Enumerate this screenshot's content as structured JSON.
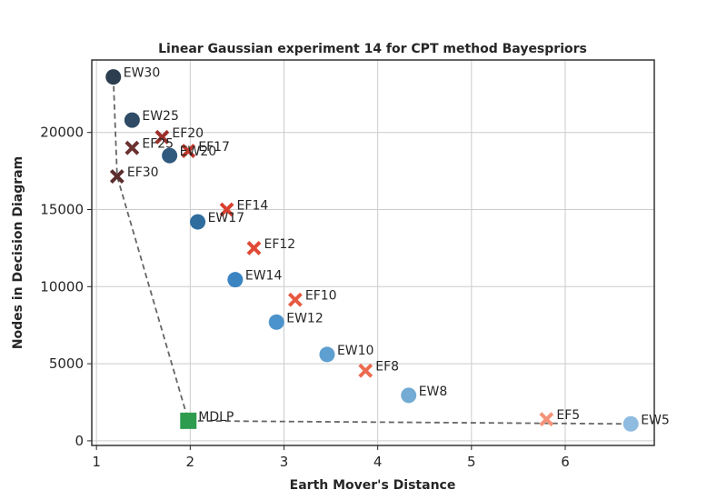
{
  "chart_data": {
    "type": "scatter",
    "title": "Linear Gaussian experiment 14 for CPT method Bayespriors",
    "xlabel": "Earth Mover's Distance",
    "ylabel": "Nodes in Decision Diagram",
    "xlim": [
      0.95,
      6.95
    ],
    "ylim": [
      -300,
      24700
    ],
    "xticks": [
      1,
      2,
      3,
      4,
      5,
      6
    ],
    "yticks": [
      0,
      5000,
      10000,
      15000,
      20000
    ],
    "grid": true,
    "series": [
      {
        "marker": "circle",
        "points": [
          {
            "label": "EW30",
            "x": 1.18,
            "y": 23600,
            "color": "#2c3e50"
          },
          {
            "label": "EW25",
            "x": 1.38,
            "y": 20800,
            "color": "#2f4b66"
          },
          {
            "label": "EW20",
            "x": 1.78,
            "y": 18500,
            "color": "#305a7e"
          },
          {
            "label": "EW17",
            "x": 2.08,
            "y": 14200,
            "color": "#2f6d9e"
          },
          {
            "label": "EW14",
            "x": 2.48,
            "y": 10450,
            "color": "#3a84c2"
          },
          {
            "label": "EW12",
            "x": 2.92,
            "y": 7700,
            "color": "#4b93cc"
          },
          {
            "label": "EW10",
            "x": 3.46,
            "y": 5600,
            "color": "#5e9fd1"
          },
          {
            "label": "EW8",
            "x": 4.33,
            "y": 2950,
            "color": "#73abd4"
          },
          {
            "label": "EW5",
            "x": 6.7,
            "y": 1100,
            "color": "#8ebbe0"
          }
        ]
      },
      {
        "marker": "x",
        "points": [
          {
            "label": "EF30",
            "x": 1.22,
            "y": 17150,
            "color": "#5b2e2e"
          },
          {
            "label": "EF25",
            "x": 1.38,
            "y": 19000,
            "color": "#6b3232"
          },
          {
            "label": "EF20",
            "x": 1.7,
            "y": 19700,
            "color": "#9b2f2a"
          },
          {
            "label": "EF17",
            "x": 1.98,
            "y": 18800,
            "color": "#c0392b"
          },
          {
            "label": "EF14",
            "x": 2.39,
            "y": 15000,
            "color": "#d9402f"
          },
          {
            "label": "EF12",
            "x": 2.68,
            "y": 12500,
            "color": "#e04a35"
          },
          {
            "label": "EF10",
            "x": 3.12,
            "y": 9150,
            "color": "#e55a40"
          },
          {
            "label": "EF8",
            "x": 3.87,
            "y": 4550,
            "color": "#ec6b50"
          },
          {
            "label": "EF5",
            "x": 5.8,
            "y": 1400,
            "color": "#f4937a"
          }
        ]
      },
      {
        "marker": "square",
        "points": [
          {
            "label": "MDLP",
            "x": 1.98,
            "y": 1300,
            "color": "#2e9c4f"
          }
        ]
      }
    ],
    "frontier": {
      "style": "dashed",
      "color": "#666666",
      "points": [
        {
          "x": 1.18,
          "y": 23600
        },
        {
          "x": 1.22,
          "y": 17150
        },
        {
          "x": 1.98,
          "y": 1300
        },
        {
          "x": 6.7,
          "y": 1100
        }
      ]
    }
  }
}
